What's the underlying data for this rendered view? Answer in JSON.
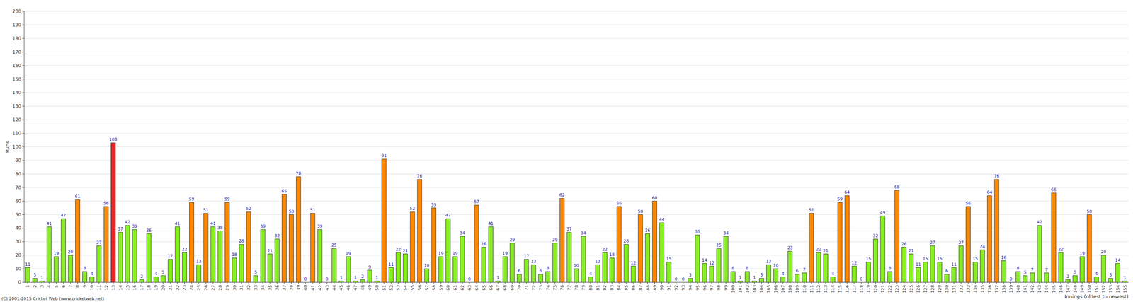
{
  "chart_data": {
    "type": "bar",
    "ylabel": "Runs",
    "xlabel": "Innings (oldest to newest)",
    "annotations": [
      "(C) 2001-2015 Cricket Web (www.cricketweb.net)"
    ],
    "categories": [
      "1",
      "2",
      "3",
      "4",
      "5",
      "6",
      "7",
      "8",
      "9",
      "10",
      "11",
      "12",
      "13",
      "14",
      "15",
      "16",
      "17",
      "18",
      "19",
      "20",
      "21",
      "22",
      "23",
      "24",
      "25",
      "26",
      "27",
      "28",
      "29",
      "30",
      "31",
      "32",
      "33",
      "34",
      "35",
      "36",
      "37",
      "38",
      "39",
      "40",
      "41",
      "42",
      "43",
      "44",
      "45",
      "46",
      "47",
      "48",
      "49",
      "50",
      "51",
      "52",
      "53",
      "54",
      "55",
      "56",
      "57",
      "58",
      "59",
      "60",
      "61",
      "62",
      "63",
      "64",
      "65",
      "66",
      "67",
      "68",
      "69",
      "70",
      "71",
      "72",
      "73",
      "74",
      "75",
      "76",
      "77",
      "78",
      "79",
      "80",
      "81",
      "82",
      "83",
      "84",
      "85",
      "86",
      "87",
      "88",
      "89",
      "90",
      "91",
      "92",
      "93",
      "94",
      "95",
      "96",
      "97",
      "98",
      "99",
      "100",
      "101",
      "102",
      "103",
      "104",
      "105",
      "106",
      "107",
      "108",
      "109",
      "110",
      "111",
      "112",
      "113",
      "114",
      "115",
      "116",
      "117",
      "118",
      "119",
      "120",
      "121",
      "122",
      "123",
      "124",
      "125",
      "126",
      "127",
      "128",
      "129",
      "130",
      "131",
      "132",
      "133",
      "134",
      "135",
      "136",
      "137",
      "138",
      "139",
      "140",
      "141",
      "142",
      "143",
      "144",
      "145",
      "146",
      "147",
      "148",
      "149",
      "150",
      "151",
      "152",
      "153",
      "154",
      "155"
    ],
    "values": [
      11,
      3,
      1,
      41,
      19,
      47,
      20,
      61,
      8,
      4,
      27,
      56,
      103,
      37,
      42,
      39,
      2,
      36,
      4,
      5,
      17,
      41,
      22,
      59,
      13,
      51,
      41,
      38,
      59,
      18,
      28,
      52,
      5,
      39,
      21,
      32,
      65,
      50,
      78,
      0,
      51,
      39,
      0,
      25,
      1,
      19,
      1,
      2,
      9,
      1,
      91,
      11,
      22,
      21,
      52,
      76,
      10,
      55,
      19,
      47,
      19,
      34,
      0,
      57,
      26,
      41,
      1,
      19,
      29,
      6,
      17,
      13,
      6,
      8,
      29,
      62,
      37,
      10,
      34,
      4,
      13,
      22,
      18,
      56,
      28,
      12,
      50,
      36,
      60,
      44,
      15,
      0,
      0,
      3,
      35,
      14,
      12,
      25,
      34,
      8,
      1,
      8,
      1,
      3,
      13,
      10,
      4,
      23,
      6,
      7,
      51,
      22,
      21,
      4,
      59,
      64,
      12,
      0,
      15,
      32,
      49,
      8,
      68,
      26,
      21,
      11,
      15,
      27,
      15,
      6,
      11,
      27,
      56,
      15,
      24,
      64,
      76,
      16,
      0,
      8,
      5,
      7,
      42,
      7,
      66,
      22,
      2,
      5,
      19,
      50,
      4,
      20,
      3,
      14,
      1
    ],
    "colors": [
      "#88ee22",
      "#88ee22",
      "#88ee22",
      "#88ee22",
      "#88ee22",
      "#88ee22",
      "#88ee22",
      "#ff8800",
      "#88ee22",
      "#88ee22",
      "#88ee22",
      "#ff8800",
      "#ee2222",
      "#88ee22",
      "#88ee22",
      "#88ee22",
      "#88ee22",
      "#88ee22",
      "#88ee22",
      "#88ee22",
      "#88ee22",
      "#88ee22",
      "#88ee22",
      "#ff8800",
      "#88ee22",
      "#ff8800",
      "#88ee22",
      "#88ee22",
      "#ff8800",
      "#88ee22",
      "#88ee22",
      "#ff8800",
      "#88ee22",
      "#88ee22",
      "#88ee22",
      "#88ee22",
      "#ff8800",
      "#ff8800",
      "#ff8800",
      "#88ee22",
      "#ff8800",
      "#88ee22",
      "#88ee22",
      "#88ee22",
      "#88ee22",
      "#88ee22",
      "#88ee22",
      "#88ee22",
      "#88ee22",
      "#88ee22",
      "#ff8800",
      "#88ee22",
      "#88ee22",
      "#88ee22",
      "#ff8800",
      "#ff8800",
      "#88ee22",
      "#ff8800",
      "#88ee22",
      "#88ee22",
      "#88ee22",
      "#88ee22",
      "#88ee22",
      "#ff8800",
      "#88ee22",
      "#88ee22",
      "#88ee22",
      "#88ee22",
      "#88ee22",
      "#88ee22",
      "#88ee22",
      "#88ee22",
      "#88ee22",
      "#88ee22",
      "#88ee22",
      "#ff8800",
      "#88ee22",
      "#88ee22",
      "#88ee22",
      "#88ee22",
      "#88ee22",
      "#88ee22",
      "#88ee22",
      "#ff8800",
      "#88ee22",
      "#88ee22",
      "#ff8800",
      "#88ee22",
      "#ff8800",
      "#88ee22",
      "#88ee22",
      "#88ee22",
      "#88ee22",
      "#88ee22",
      "#88ee22",
      "#88ee22",
      "#88ee22",
      "#88ee22",
      "#88ee22",
      "#88ee22",
      "#88ee22",
      "#88ee22",
      "#88ee22",
      "#88ee22",
      "#88ee22",
      "#88ee22",
      "#88ee22",
      "#88ee22",
      "#88ee22",
      "#88ee22",
      "#ff8800",
      "#88ee22",
      "#88ee22",
      "#88ee22",
      "#ff8800",
      "#ff8800",
      "#88ee22",
      "#88ee22",
      "#88ee22",
      "#88ee22",
      "#88ee22",
      "#88ee22",
      "#ff8800",
      "#88ee22",
      "#88ee22",
      "#88ee22",
      "#88ee22",
      "#88ee22",
      "#88ee22",
      "#88ee22",
      "#88ee22",
      "#88ee22",
      "#ff8800",
      "#88ee22",
      "#88ee22",
      "#ff8800",
      "#ff8800",
      "#88ee22",
      "#88ee22",
      "#88ee22",
      "#88ee22",
      "#88ee22",
      "#88ee22",
      "#88ee22",
      "#ff8800",
      "#88ee22",
      "#88ee22",
      "#88ee22",
      "#88ee22",
      "#ff8800",
      "#88ee22",
      "#88ee22",
      "#88ee22",
      "#88ee22",
      "#88ee22"
    ],
    "ylim": [
      0,
      200
    ],
    "yticks": [
      0,
      10,
      20,
      30,
      40,
      50,
      60,
      70,
      80,
      90,
      100,
      110,
      120,
      130,
      140,
      150,
      160,
      170,
      180,
      190,
      200
    ],
    "grid": true,
    "data_labels": true
  }
}
